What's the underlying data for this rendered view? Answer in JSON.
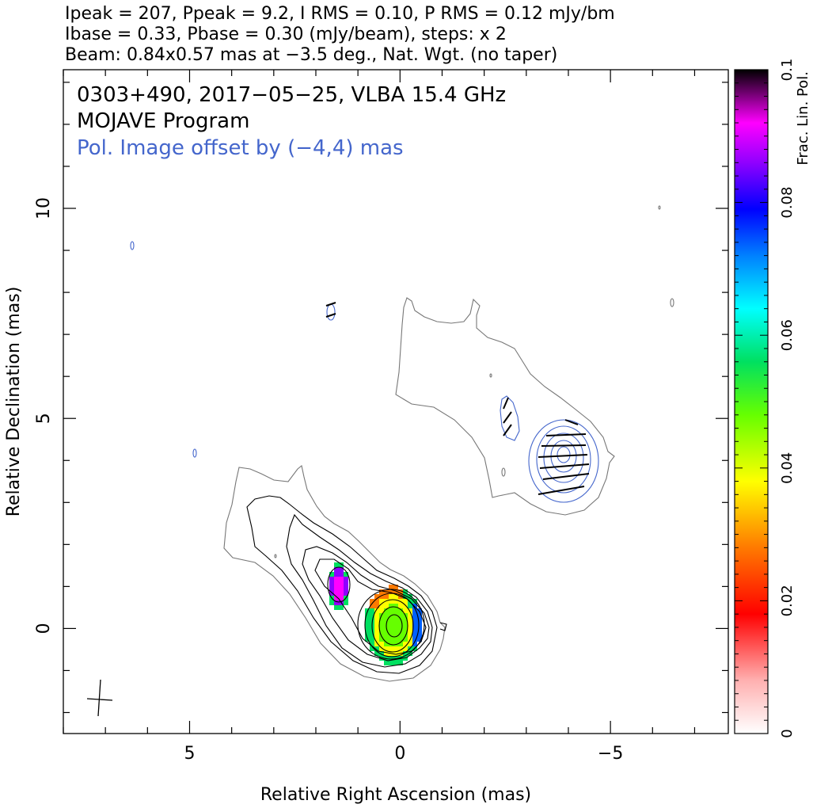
{
  "header": {
    "line1": "Ipeak = 207, Ppeak = 9.2, I RMS = 0.10, P RMS = 0.12 mJy/bm",
    "line2": "Ibase = 0.33, Pbase = 0.30 (mJy/beam), steps: x 2",
    "line3": "Beam: 0.84x0.57 mas at −3.5 deg., Nat. Wgt. (no taper)"
  },
  "annotations": {
    "source": "0303+490, 2017−05−25, VLBA 15.4 GHz",
    "program": "MOJAVE Program",
    "offset": "Pol. Image offset by (−4,4) mas"
  },
  "colors": {
    "total_intensity_contours": "#000000",
    "outer_contour": "#777777",
    "pol_contours": "#4466cc",
    "evpa_sticks": "#000000"
  },
  "chart_data": {
    "type": "heatmap",
    "xlabel": "Relative Right Ascension (mas)",
    "ylabel": "Relative Declination (mas)",
    "xlim": [
      8,
      -7.8
    ],
    "ylim": [
      -2.5,
      13.3
    ],
    "x_ticks": [
      {
        "value": 5,
        "label": "5"
      },
      {
        "value": 0,
        "label": "0"
      },
      {
        "value": -5,
        "label": "−5"
      }
    ],
    "y_ticks": [
      {
        "value": 0,
        "label": "0"
      },
      {
        "value": 5,
        "label": "5"
      },
      {
        "value": 10,
        "label": "10"
      }
    ],
    "colorbar": {
      "label": "Frac. Lin. Pol.",
      "range": [
        0,
        0.1
      ],
      "ticks": [
        {
          "value": 0,
          "label": "0"
        },
        {
          "value": 0.02,
          "label": "0.02"
        },
        {
          "value": 0.04,
          "label": "0.04"
        },
        {
          "value": 0.06,
          "label": "0.06"
        },
        {
          "value": 0.08,
          "label": "0.08"
        },
        {
          "value": 0.1,
          "label": "0.1"
        }
      ]
    },
    "core": {
      "x": 0,
      "y": 0
    },
    "contour_levels": [
      "0.33",
      "0.66",
      "1.32",
      "2.64",
      "5.28",
      "10.6",
      "21.1",
      "42.2",
      "84.5",
      "169"
    ],
    "pol_image_offset": [
      -4,
      4
    ],
    "beam": {
      "major_mas": 0.84,
      "minor_mas": 0.57,
      "pa_deg": -3.5
    }
  }
}
